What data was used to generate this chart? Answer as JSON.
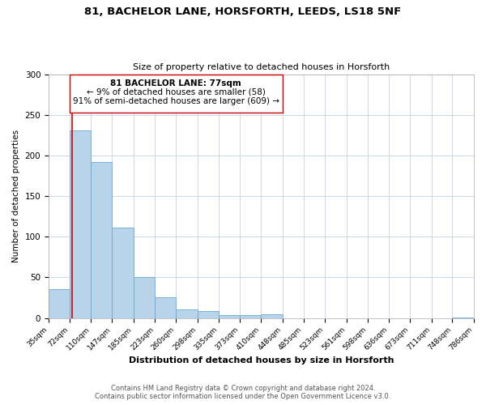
{
  "title1": "81, BACHELOR LANE, HORSFORTH, LEEDS, LS18 5NF",
  "title2": "Size of property relative to detached houses in Horsforth",
  "xlabel": "Distribution of detached houses by size in Horsforth",
  "ylabel": "Number of detached properties",
  "bar_edges": [
    35,
    72,
    110,
    147,
    185,
    223,
    260,
    298,
    335,
    373,
    410,
    448,
    485,
    523,
    561,
    598,
    636,
    673,
    711,
    748,
    786
  ],
  "bar_heights": [
    36,
    231,
    192,
    111,
    50,
    26,
    11,
    9,
    4,
    4,
    5,
    0,
    0,
    0,
    0,
    0,
    0,
    0,
    0,
    1
  ],
  "bar_color": "#b8d4ea",
  "bar_edgecolor": "#6aaad4",
  "vline_x": 77,
  "vline_color": "#cc0000",
  "annotation_line1": "81 BACHELOR LANE: 77sqm",
  "annotation_line2": "← 9% of detached houses are smaller (58)",
  "annotation_line3": "91% of semi-detached houses are larger (609) →",
  "tick_labels": [
    "35sqm",
    "72sqm",
    "110sqm",
    "147sqm",
    "185sqm",
    "223sqm",
    "260sqm",
    "298sqm",
    "335sqm",
    "373sqm",
    "410sqm",
    "448sqm",
    "485sqm",
    "523sqm",
    "561sqm",
    "598sqm",
    "636sqm",
    "673sqm",
    "711sqm",
    "748sqm",
    "786sqm"
  ],
  "ylim": [
    0,
    300
  ],
  "yticks": [
    0,
    50,
    100,
    150,
    200,
    250,
    300
  ],
  "footer1": "Contains HM Land Registry data © Crown copyright and database right 2024.",
  "footer2": "Contains public sector information licensed under the Open Government Licence v3.0.",
  "bg_color": "#ffffff",
  "grid_color": "#ccd8e8"
}
